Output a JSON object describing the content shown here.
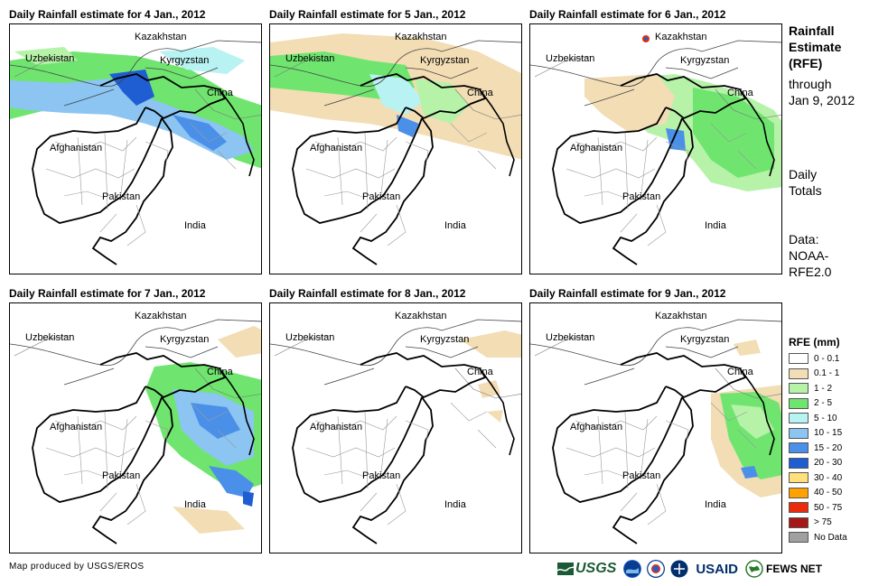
{
  "panels": [
    {
      "title": "Daily Rainfall estimate for 4 Jan., 2012"
    },
    {
      "title": "Daily Rainfall estimate for 5 Jan., 2012"
    },
    {
      "title": "Daily Rainfall estimate for 6 Jan., 2012"
    },
    {
      "title": "Daily Rainfall estimate for 7 Jan., 2012"
    },
    {
      "title": "Daily Rainfall estimate for 8 Jan., 2012"
    },
    {
      "title": "Daily Rainfall estimate for 9 Jan., 2012"
    }
  ],
  "map_labels": {
    "kazakhstan": "Kazakhstan",
    "uzbekistan": "Uzbekistan",
    "kyrgyzstan": "Kyrgyzstan",
    "china": "China",
    "afghanistan": "Afghanistan",
    "pakistan": "Pakistan",
    "india": "India"
  },
  "sidebar": {
    "title_line1": "Rainfall",
    "title_line2": "Estimate",
    "title_line3": "(RFE)",
    "through_line1": "through",
    "through_line2": "Jan 9, 2012",
    "daily_line1": "Daily",
    "daily_line2": "Totals",
    "data_line1": "Data:",
    "data_line2": "NOAA-",
    "data_line3": "RFE2.0"
  },
  "legend": {
    "title": "RFE (mm)",
    "items": [
      {
        "label": "0 - 0.1",
        "color": "#ffffff"
      },
      {
        "label": "0.1 - 1",
        "color": "#f2ddb4"
      },
      {
        "label": "1 - 2",
        "color": "#b6f2a8"
      },
      {
        "label": "2 - 5",
        "color": "#6fe56f"
      },
      {
        "label": "5 - 10",
        "color": "#b8f2f2"
      },
      {
        "label": "10 - 15",
        "color": "#8cc4f2"
      },
      {
        "label": "15 - 20",
        "color": "#4a90e8"
      },
      {
        "label": "20 - 30",
        "color": "#1f5ed2"
      },
      {
        "label": "30 - 40",
        "color": "#ffe07a"
      },
      {
        "label": "40 - 50",
        "color": "#ffa200"
      },
      {
        "label": "50 - 75",
        "color": "#ec2a0c"
      },
      {
        "label": "> 75",
        "color": "#a61818"
      },
      {
        "label": "No Data",
        "color": "#a0a0a0"
      }
    ]
  },
  "footer": {
    "credit": "Map produced by USGS/EROS",
    "logo_usgs": "USGS",
    "logo_usaid": "USAID",
    "logo_fewsnet": "FEWS NET"
  }
}
